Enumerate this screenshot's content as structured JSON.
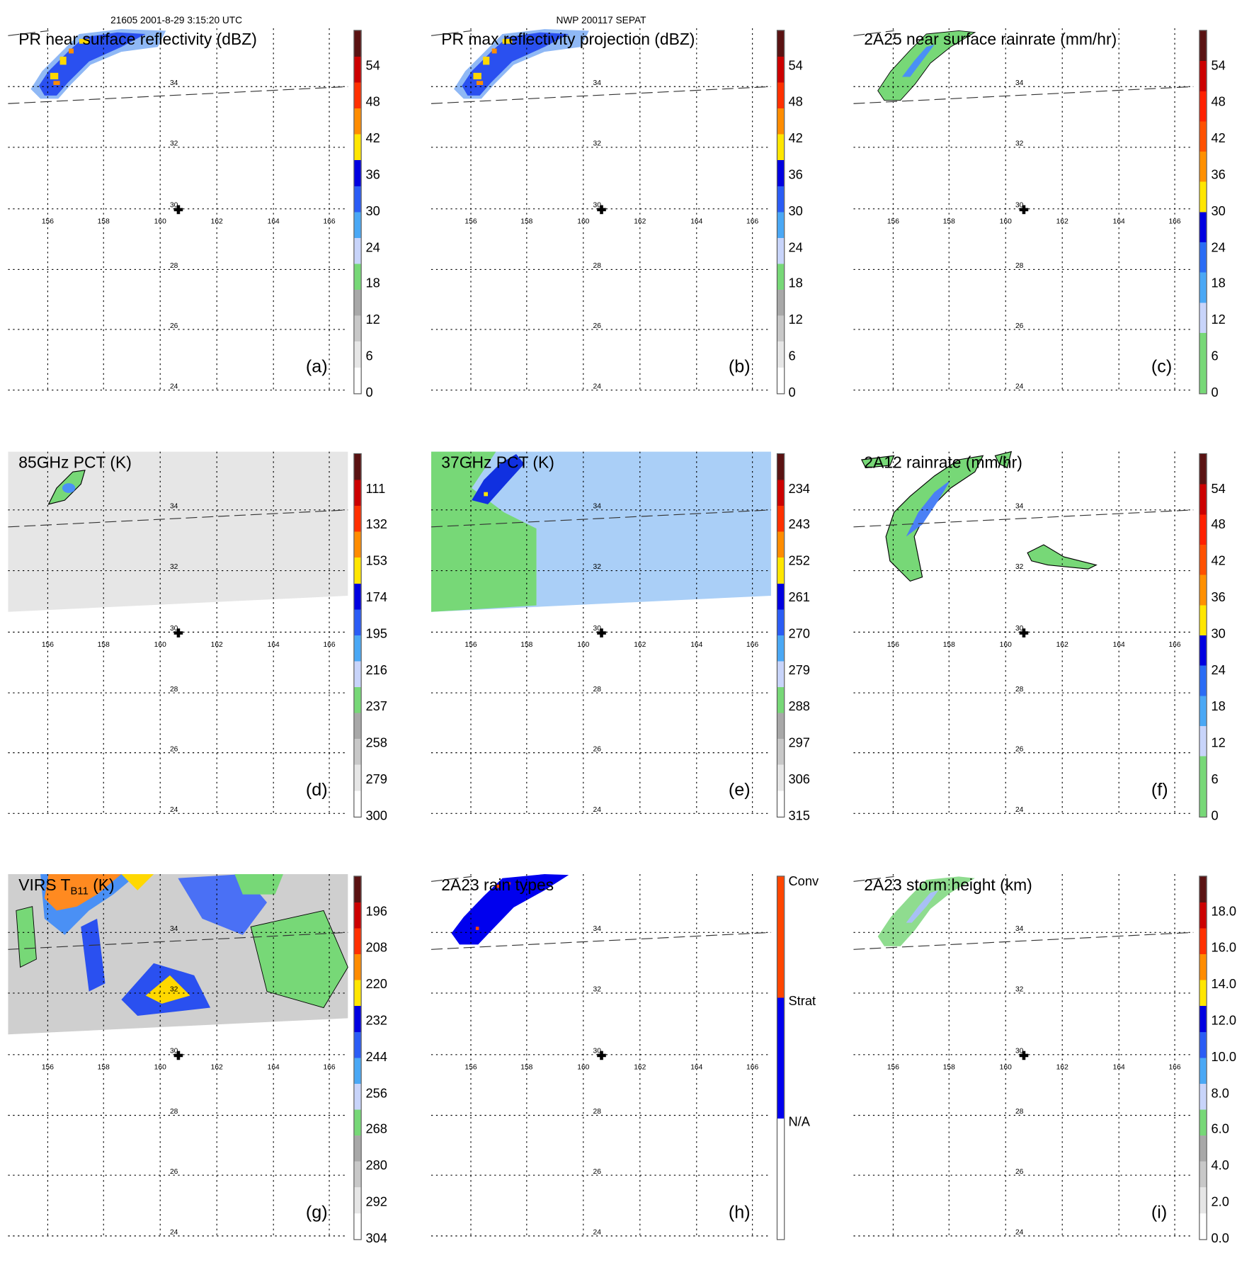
{
  "header": {
    "left": "21605 2001-8-29 3:15:20 UTC",
    "center": "NWP 200117 SEPAT"
  },
  "grid": {
    "lon_labels": [
      "156",
      "158",
      "160",
      "162",
      "164",
      "166"
    ],
    "lat_labels": [
      "34",
      "32",
      "30",
      "28",
      "26",
      "24"
    ]
  },
  "panels": [
    {
      "id": "a",
      "title": "PR near surface reflectivity (dBZ)",
      "letter": "(a)",
      "kind": "pr",
      "cbar_labels": [
        "54",
        "48",
        "42",
        "36",
        "30",
        "24",
        "18",
        "12",
        "6",
        "0"
      ],
      "cbar_colors": [
        "#ffffff",
        "#e6e6e6",
        "#c8c8c8",
        "#a8a8a8",
        "#77d877",
        "#c8d4fa",
        "#4aa8f5",
        "#2a5cf5",
        "#0000e0",
        "#ffe600",
        "#ff8c00",
        "#ff3000",
        "#cc0000",
        "#5a1212"
      ]
    },
    {
      "id": "b",
      "title": "PR max reflectivity projection (dBZ)",
      "letter": "(b)",
      "kind": "pr",
      "cbar_labels": [
        "54",
        "48",
        "42",
        "36",
        "30",
        "24",
        "18",
        "12",
        "6",
        "0"
      ],
      "cbar_colors": [
        "#ffffff",
        "#e6e6e6",
        "#c8c8c8",
        "#a8a8a8",
        "#77d877",
        "#c8d4fa",
        "#4aa8f5",
        "#2a5cf5",
        "#0000e0",
        "#ffe600",
        "#ff8c00",
        "#ff3000",
        "#cc0000",
        "#5a1212"
      ]
    },
    {
      "id": "c",
      "title": "2A25 near surface rainrate (mm/hr)",
      "letter": "(c)",
      "kind": "rain",
      "cbar_labels": [
        "54",
        "48",
        "42",
        "36",
        "30",
        "24",
        "18",
        "12",
        "6",
        "0"
      ],
      "cbar_colors": [
        "#77d877",
        "#77d877",
        "#c8d4fa",
        "#4aa8f5",
        "#2a6cf5",
        "#0000e0",
        "#ffe600",
        "#ff9000",
        "#ff5000",
        "#ff2000",
        "#cc0000",
        "#5a1212"
      ]
    },
    {
      "id": "d",
      "title": "85GHz PCT (K)",
      "letter": "(d)",
      "kind": "pct85",
      "cbar_labels": [
        "111",
        "132",
        "153",
        "174",
        "195",
        "216",
        "237",
        "258",
        "279",
        "300"
      ],
      "cbar_colors": [
        "#ffffff",
        "#e6e6e6",
        "#c8c8c8",
        "#a8a8a8",
        "#77d877",
        "#c8d4fa",
        "#4aa8f5",
        "#2a5cf5",
        "#0000e0",
        "#ffe600",
        "#ff8c00",
        "#ff3000",
        "#cc0000",
        "#5a1212"
      ]
    },
    {
      "id": "e",
      "title": "37GHz PCT (K)",
      "letter": "(e)",
      "kind": "pct37",
      "cbar_labels": [
        "234",
        "243",
        "252",
        "261",
        "270",
        "279",
        "288",
        "297",
        "306",
        "315"
      ],
      "cbar_colors": [
        "#ffffff",
        "#e6e6e6",
        "#c8c8c8",
        "#a8a8a8",
        "#77d877",
        "#c8d4fa",
        "#4aa8f5",
        "#2a5cf5",
        "#0000e0",
        "#ffe600",
        "#ff8c00",
        "#ff3000",
        "#cc0000",
        "#5a1212"
      ]
    },
    {
      "id": "f",
      "title": "2A12 rainrate (mm/hr)",
      "letter": "(f)",
      "kind": "rain12",
      "cbar_labels": [
        "54",
        "48",
        "42",
        "36",
        "30",
        "24",
        "18",
        "12",
        "6",
        "0"
      ],
      "cbar_colors": [
        "#77d877",
        "#77d877",
        "#c8d4fa",
        "#4aa8f5",
        "#2a6cf5",
        "#0000e0",
        "#ffe600",
        "#ff9000",
        "#ff5000",
        "#ff2000",
        "#cc0000",
        "#5a1212"
      ]
    },
    {
      "id": "g",
      "title": "VIRS T",
      "title_sub": "B11",
      "title_tail": " (K)",
      "letter": "(g)",
      "kind": "virs",
      "cbar_labels": [
        "196",
        "208",
        "220",
        "232",
        "244",
        "256",
        "268",
        "280",
        "292",
        "304"
      ],
      "cbar_colors": [
        "#ffffff",
        "#e6e6e6",
        "#c8c8c8",
        "#a8a8a8",
        "#77d877",
        "#c8d4fa",
        "#4aa8f5",
        "#2a5cf5",
        "#0000e0",
        "#ffe600",
        "#ff8c00",
        "#ff3000",
        "#cc0000",
        "#5a1212"
      ]
    },
    {
      "id": "h",
      "title": "2A23 rain types",
      "letter": "(h)",
      "kind": "types",
      "cbar_labels": [
        "Conv",
        "Strat",
        "N/A"
      ],
      "cbar_colors": [
        "#ffffff",
        "#0000ee",
        "#ff4500"
      ]
    },
    {
      "id": "i",
      "title": "2A23 storm height (km)",
      "letter": "(i)",
      "kind": "height",
      "cbar_labels": [
        "18.0",
        "16.0",
        "14.0",
        "12.0",
        "10.0",
        "8.0",
        "6.0",
        "4.0",
        "2.0",
        "0.0"
      ],
      "cbar_colors": [
        "#ffffff",
        "#e6e6e6",
        "#c8c8c8",
        "#a8a8a8",
        "#77d877",
        "#c8d4fa",
        "#4aa8f5",
        "#2a5cf5",
        "#0000e0",
        "#ffe600",
        "#ff8c00",
        "#ff3000",
        "#cc0000",
        "#5a1212"
      ]
    }
  ]
}
